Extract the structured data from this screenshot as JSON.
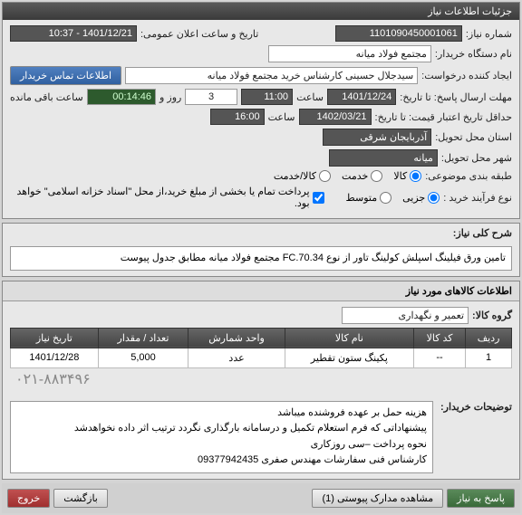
{
  "panel1": {
    "title": "جزئیات اطلاعات نیاز",
    "req_no_lbl": "شماره نیاز:",
    "req_no": "1101090450001061",
    "ann_date_lbl": "تاریخ و ساعت اعلان عمومی:",
    "ann_date": "1401/12/21 - 10:37",
    "buyer_lbl": "نام دستگاه خریدار:",
    "buyer": "مجتمع فولاد میانه",
    "creator_lbl": "ایجاد کننده درخواست:",
    "creator": "سیدجلال حسینی کارشناس خرید مجتمع فولاد میانه",
    "contact_btn": "اطلاعات تماس خریدار",
    "deadline_lbl": "مهلت ارسال پاسخ: تا تاریخ:",
    "deadline_date": "1401/12/24",
    "time_lbl": "ساعت",
    "deadline_time": "11:00",
    "days_lbl": "روز و",
    "days": "3",
    "remain_lbl": "ساعت باقی مانده",
    "remain": "00:14:46",
    "validity_lbl": "حداقل تاریخ اعتبار قیمت: تا تاریخ:",
    "validity_date": "1402/03/21",
    "validity_time": "16:00",
    "province_lbl": "استان محل تحویل:",
    "province": "آذربایجان شرقی",
    "city_lbl": "شهر محل تحویل:",
    "city": "میانه",
    "category_lbl": "طبقه بندی موضوعی:",
    "cat_goods": "کالا",
    "cat_service": "خدمت",
    "cat_both": "کالا/خدمت",
    "process_lbl": "نوع فرآیند خرید :",
    "proc_partial": "جزیی",
    "proc_medium": "متوسط",
    "payment_note": "پرداخت تمام یا بخشی از مبلغ خرید،از محل \"اسناد خزانه اسلامی\" خواهد بود."
  },
  "desc": {
    "title": "شرح کلی نیاز:",
    "text": "تامین ورق فیلینگ اسپلش کولینگ تاور از نوع FC.70.34 مجتمع فولاد میانه مطابق جدول پیوست"
  },
  "items": {
    "title": "اطلاعات کالاهای مورد نیاز",
    "group_lbl": "گروه کالا:",
    "group": "تعمیر و نگهداری",
    "cols": [
      "ردیف",
      "کد کالا",
      "نام کالا",
      "واحد شمارش",
      "تعداد / مقدار",
      "تاریخ نیاز"
    ],
    "rows": [
      [
        "1",
        "--",
        "پکینگ ستون تقطیر",
        "عدد",
        "5,000",
        "1401/12/28"
      ]
    ],
    "phone": "۰۲۱-۸۸۳۴۹۶",
    "notes_lbl": "توضیحات خریدار:",
    "notes": "هزینه حمل بر عهده فروشنده میباشد\nپیشنهاداتی که فرم استعلام تکمیل و درسامانه بارگذاری نگردد ترتیب اثر داده نخواهدشد\nنحوه پرداخت –سی روزکاری\nکارشناس فنی سفارشات مهندس صفری 09377942435"
  },
  "footer": {
    "respond": "پاسخ به نیاز",
    "attachments": "مشاهده مدارک پیوستی (1)",
    "back": "بازگشت",
    "exit": "خروج"
  }
}
